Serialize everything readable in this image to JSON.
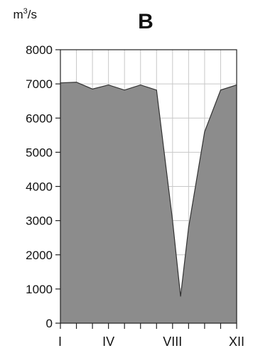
{
  "chart_data": {
    "type": "area",
    "title": "B",
    "ylabel": "m³/s",
    "y_unit_base": "m",
    "y_unit_exp": "3",
    "y_unit_tail": "/s",
    "xlabel": "",
    "x": [
      1,
      2,
      3,
      4,
      5,
      6,
      7,
      8,
      8.5,
      9,
      10,
      11,
      12
    ],
    "values": [
      7030,
      7050,
      6850,
      6970,
      6820,
      6970,
      6820,
      3000,
      780,
      2800,
      5600,
      6820,
      6970
    ],
    "xlim": [
      1,
      12
    ],
    "ylim": [
      0,
      8000
    ],
    "y_ticks": [
      0,
      1000,
      2000,
      3000,
      4000,
      5000,
      6000,
      7000,
      8000
    ],
    "y_tick_labels": [
      "0",
      "1000",
      "2000",
      "3000",
      "4000",
      "5000",
      "6000",
      "7000",
      "8000"
    ],
    "x_ticks": [
      1,
      2,
      3,
      4,
      5,
      6,
      7,
      8,
      9,
      10,
      11,
      12
    ],
    "x_tick_labels": [
      {
        "x": 1,
        "label": "I"
      },
      {
        "x": 4,
        "label": "IV"
      },
      {
        "x": 8,
        "label": "VIII"
      },
      {
        "x": 12,
        "label": "XII"
      }
    ],
    "grid": true,
    "colors": {
      "fill": "#8c8c8c",
      "line": "#333333",
      "grid": "#c8c8c8"
    }
  }
}
